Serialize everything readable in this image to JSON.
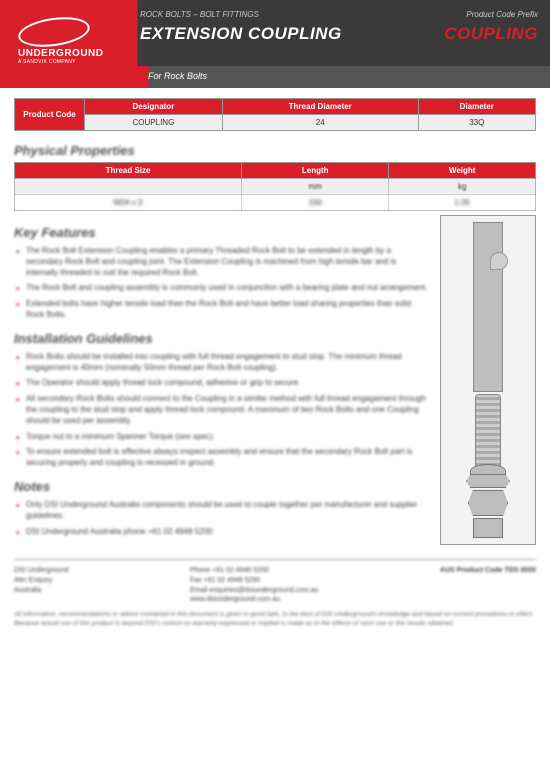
{
  "header": {
    "category": "ROCK BOLTS – BOLT FITTINGS",
    "prefix_label": "Product Code Prefix",
    "title": "EXTENSION COUPLING",
    "code": "COUPLING",
    "subtitle": "For Rock Bolts",
    "logo_main": "DSI",
    "logo_sub1": "UNDERGROUND",
    "logo_sub2": "A SANDVIK COMPANY"
  },
  "table1": {
    "side": "Product Code",
    "cols": [
      "Designator",
      "Thread Diameter",
      "Diameter"
    ],
    "row": [
      "COUPLING",
      "24",
      "33Q"
    ]
  },
  "sec_phys": "Physical Properties",
  "table2": {
    "cols": [
      "Thread Size",
      "Length",
      "Weight"
    ],
    "units": [
      "",
      "mm",
      "kg"
    ],
    "row": [
      "M24 x 3",
      "150",
      "1.05"
    ]
  },
  "sec_feat": "Key Features",
  "features": [
    "The Rock Bolt Extension Coupling enables a primary Threaded Rock Bolt to be extended in length by a secondary Rock Bolt and coupling joint. The Extension Coupling is machined from high tensile bar and is internally threaded to suit the required Rock Bolt.",
    "The Rock Bolt and coupling assembly is commonly used in conjunction with a bearing plate and nut arrangement.",
    "Extended bolts have higher tensile load than the Rock Bolt and have better load sharing properties than solid Rock Bolts."
  ],
  "sec_install": "Installation Guidelines",
  "install": [
    "Rock Bolts should be installed into coupling with full thread engagement to stud stop. The minimum thread engagement is 40mm (nominally 50mm thread per Rock Bolt coupling).",
    "The Operator should apply thread lock compound, adhesive or grip to secure.",
    "All secondary Rock Bolts should connect to the Coupling in a similar method with full thread engagement through the coupling to the stud stop and apply thread lock compound. A maximum of two Rock Bolts and one Coupling should be used per assembly.",
    "Torque nut to a minimum Spanner Torque (see spec).",
    "To ensure extended bolt is effective always inspect assembly and ensure that the secondary Rock Bolt part is securing properly and coupling is recessed in ground."
  ],
  "sec_notes": "Notes",
  "notes": [
    "Only DSI Underground Australia components should be used to couple together per manufacturer and supplier guidelines.",
    "DSI Underground Australia phone +61 02 4948 5200"
  ],
  "footer": {
    "c1": [
      "DSI Underground",
      "Attn Enquiry",
      "Australia"
    ],
    "c2": [
      "Phone +61 02 4948 5200",
      "Fax +61 02 4948 5290",
      "Email enquiries@dsiunderground.com.au",
      "www.dsiunderground.com.au"
    ],
    "c3": "AUS Product Code TDS 0000",
    "disclaimer": "All information, recommendations or advice contained in this document is given in good faith, to the best of DSI Underground's knowledge and based on current procedures in effect. Because actual use of this product is beyond DSI's control no warranty expressed or implied is made as to the effects of such use or the results obtained."
  },
  "colors": {
    "red": "#d91f2a",
    "dark": "#3a3a3a",
    "grey": "#555555"
  }
}
